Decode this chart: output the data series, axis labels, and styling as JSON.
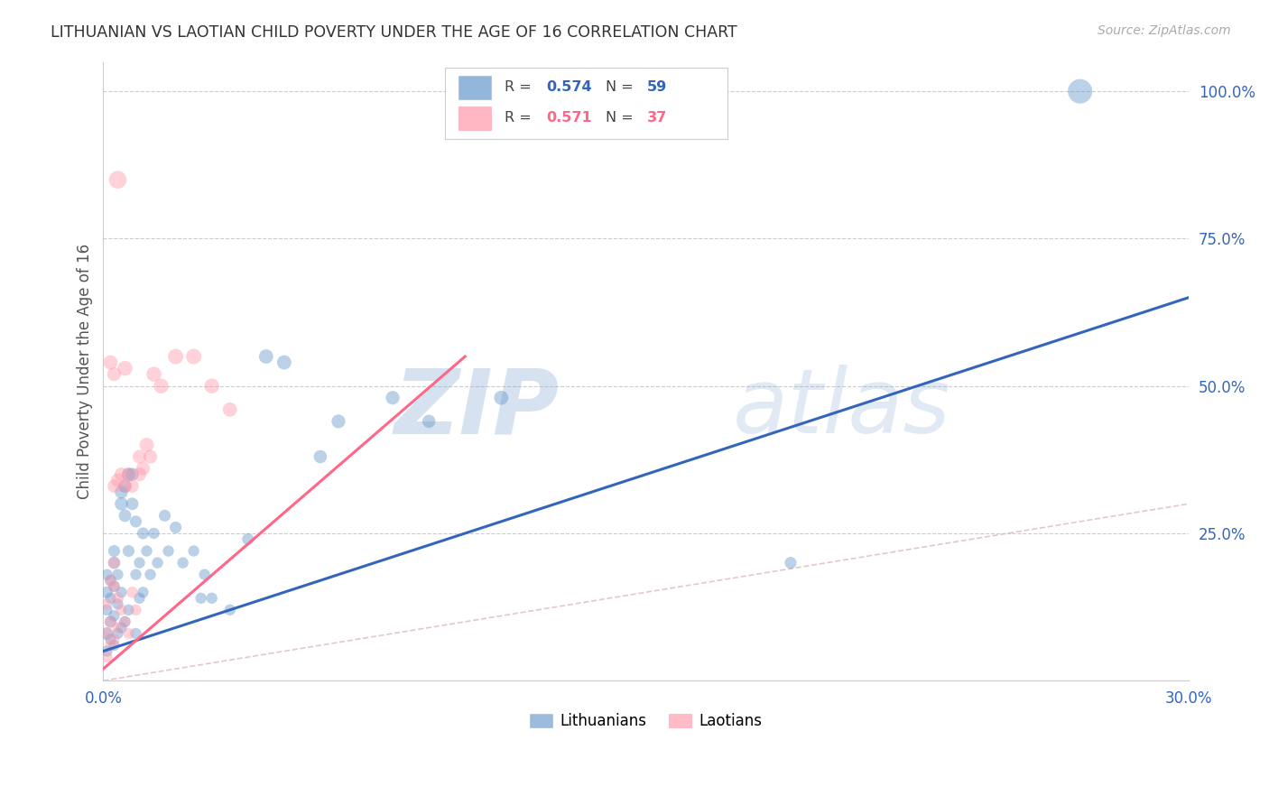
{
  "title": "LITHUANIAN VS LAOTIAN CHILD POVERTY UNDER THE AGE OF 16 CORRELATION CHART",
  "source": "Source: ZipAtlas.com",
  "ylabel": "Child Poverty Under the Age of 16",
  "xlim": [
    0.0,
    0.3
  ],
  "ylim": [
    0.0,
    1.05
  ],
  "yticks": [
    0.0,
    0.25,
    0.5,
    0.75,
    1.0
  ],
  "ytick_labels": [
    "",
    "25.0%",
    "50.0%",
    "75.0%",
    "100.0%"
  ],
  "xticks": [
    0.0,
    0.05,
    0.1,
    0.15,
    0.2,
    0.25,
    0.3
  ],
  "xtick_labels": [
    "0.0%",
    "",
    "",
    "",
    "",
    "",
    "30.0%"
  ],
  "blue_color": "#6699CC",
  "pink_color": "#FF99AA",
  "blue_line_color": "#3366BB",
  "pink_line_color": "#FF6688",
  "diag_color": "#DDBBBB",
  "legend_R_blue": "0.574",
  "legend_N_blue": "59",
  "legend_R_pink": "0.571",
  "legend_N_pink": "37",
  "legend_label_blue": "Lithuanians",
  "legend_label_pink": "Laotians",
  "watermark_zip": "ZIP",
  "watermark_atlas": "atlas",
  "blue_scatter": [
    [
      0.001,
      0.05
    ],
    [
      0.001,
      0.08
    ],
    [
      0.001,
      0.12
    ],
    [
      0.001,
      0.15
    ],
    [
      0.001,
      0.18
    ],
    [
      0.002,
      0.07
    ],
    [
      0.002,
      0.1
    ],
    [
      0.002,
      0.14
    ],
    [
      0.002,
      0.17
    ],
    [
      0.003,
      0.06
    ],
    [
      0.003,
      0.11
    ],
    [
      0.003,
      0.16
    ],
    [
      0.003,
      0.2
    ],
    [
      0.003,
      0.22
    ],
    [
      0.004,
      0.08
    ],
    [
      0.004,
      0.13
    ],
    [
      0.004,
      0.18
    ],
    [
      0.005,
      0.09
    ],
    [
      0.005,
      0.15
    ],
    [
      0.005,
      0.3
    ],
    [
      0.005,
      0.32
    ],
    [
      0.006,
      0.1
    ],
    [
      0.006,
      0.28
    ],
    [
      0.006,
      0.33
    ],
    [
      0.007,
      0.12
    ],
    [
      0.007,
      0.22
    ],
    [
      0.007,
      0.35
    ],
    [
      0.008,
      0.3
    ],
    [
      0.008,
      0.35
    ],
    [
      0.009,
      0.08
    ],
    [
      0.009,
      0.18
    ],
    [
      0.009,
      0.27
    ],
    [
      0.01,
      0.14
    ],
    [
      0.01,
      0.2
    ],
    [
      0.011,
      0.15
    ],
    [
      0.011,
      0.25
    ],
    [
      0.012,
      0.22
    ],
    [
      0.013,
      0.18
    ],
    [
      0.014,
      0.25
    ],
    [
      0.015,
      0.2
    ],
    [
      0.017,
      0.28
    ],
    [
      0.018,
      0.22
    ],
    [
      0.02,
      0.26
    ],
    [
      0.022,
      0.2
    ],
    [
      0.025,
      0.22
    ],
    [
      0.027,
      0.14
    ],
    [
      0.028,
      0.18
    ],
    [
      0.03,
      0.14
    ],
    [
      0.035,
      0.12
    ],
    [
      0.04,
      0.24
    ],
    [
      0.045,
      0.55
    ],
    [
      0.05,
      0.54
    ],
    [
      0.06,
      0.38
    ],
    [
      0.065,
      0.44
    ],
    [
      0.08,
      0.48
    ],
    [
      0.09,
      0.44
    ],
    [
      0.11,
      0.48
    ],
    [
      0.19,
      0.2
    ],
    [
      0.27,
      1.0
    ]
  ],
  "pink_scatter": [
    [
      0.001,
      0.04
    ],
    [
      0.001,
      0.08
    ],
    [
      0.001,
      0.13
    ],
    [
      0.002,
      0.06
    ],
    [
      0.002,
      0.1
    ],
    [
      0.002,
      0.17
    ],
    [
      0.003,
      0.07
    ],
    [
      0.003,
      0.16
    ],
    [
      0.003,
      0.2
    ],
    [
      0.003,
      0.33
    ],
    [
      0.004,
      0.09
    ],
    [
      0.004,
      0.14
    ],
    [
      0.004,
      0.34
    ],
    [
      0.005,
      0.12
    ],
    [
      0.005,
      0.35
    ],
    [
      0.006,
      0.1
    ],
    [
      0.006,
      0.33
    ],
    [
      0.006,
      0.53
    ],
    [
      0.007,
      0.08
    ],
    [
      0.007,
      0.35
    ],
    [
      0.008,
      0.15
    ],
    [
      0.008,
      0.33
    ],
    [
      0.009,
      0.12
    ],
    [
      0.01,
      0.35
    ],
    [
      0.01,
      0.38
    ],
    [
      0.011,
      0.36
    ],
    [
      0.012,
      0.4
    ],
    [
      0.013,
      0.38
    ],
    [
      0.014,
      0.52
    ],
    [
      0.016,
      0.5
    ],
    [
      0.02,
      0.55
    ],
    [
      0.025,
      0.55
    ],
    [
      0.03,
      0.5
    ],
    [
      0.035,
      0.46
    ],
    [
      0.004,
      0.85
    ],
    [
      0.002,
      0.54
    ],
    [
      0.003,
      0.52
    ]
  ],
  "blue_sizes": [
    80,
    100,
    80,
    90,
    80,
    80,
    90,
    80,
    80,
    80,
    80,
    80,
    90,
    90,
    80,
    80,
    80,
    80,
    80,
    110,
    110,
    80,
    100,
    110,
    80,
    90,
    110,
    100,
    110,
    80,
    80,
    90,
    80,
    80,
    80,
    90,
    80,
    80,
    80,
    80,
    90,
    80,
    90,
    80,
    80,
    80,
    80,
    80,
    80,
    90,
    130,
    130,
    110,
    120,
    120,
    110,
    130,
    90,
    380
  ],
  "pink_sizes": [
    80,
    90,
    80,
    80,
    90,
    90,
    80,
    90,
    100,
    110,
    80,
    90,
    120,
    80,
    120,
    80,
    110,
    140,
    80,
    120,
    80,
    110,
    80,
    120,
    120,
    120,
    130,
    120,
    140,
    140,
    150,
    150,
    140,
    130,
    200,
    130,
    120
  ]
}
